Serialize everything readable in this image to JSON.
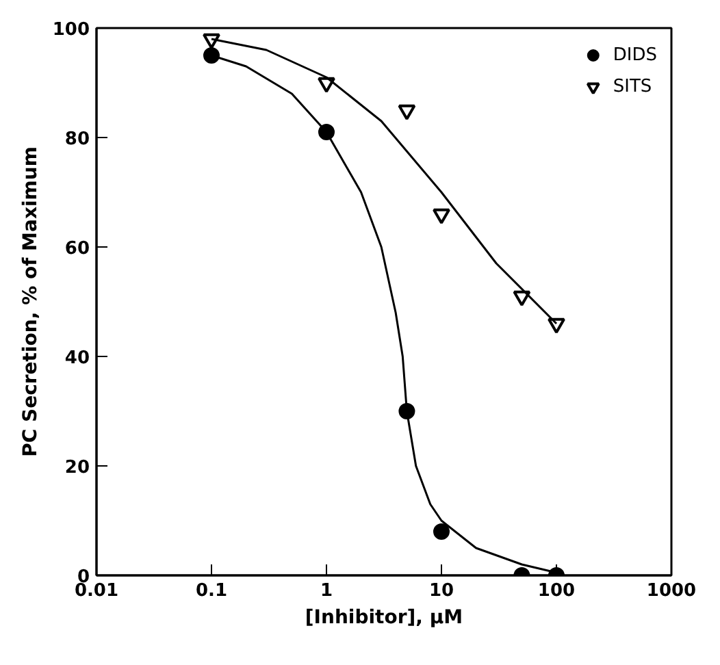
{
  "chart_data": {
    "type": "scatter",
    "xlabel": "[Inhibitor], μM",
    "ylabel": "PC Secretion, % of Maximum",
    "log": "x",
    "xlim": [
      0.01,
      1000
    ],
    "xticks": [
      0.01,
      0.1,
      1,
      10,
      100,
      1000
    ],
    "ylim": [
      0,
      100
    ],
    "yticks": [
      0,
      20,
      40,
      60,
      80,
      100
    ],
    "grid": false,
    "legend": "top right",
    "series": [
      {
        "name": "DIDS",
        "marker": "circle",
        "color": "#000000",
        "x": [
          0.1,
          1,
          5,
          10,
          50,
          100
        ],
        "values": [
          95,
          81,
          30,
          8,
          0,
          0
        ]
      },
      {
        "name": "SITS",
        "marker": "triangle",
        "color": "#000000",
        "x": [
          0.1,
          1,
          5,
          10,
          50,
          100
        ],
        "values": [
          98,
          90,
          85,
          66,
          51,
          46
        ]
      },
      {
        "type": "line",
        "color": "#000000",
        "x": [
          0.1,
          0.2,
          0.5,
          1,
          2,
          3,
          4,
          4.6,
          5,
          6,
          8,
          10,
          20,
          50,
          100
        ],
        "values": [
          95,
          93,
          88,
          81,
          70,
          60,
          48,
          40,
          30,
          20,
          13,
          10,
          5,
          2,
          0.5
        ]
      },
      {
        "type": "line",
        "color": "#000000",
        "x": [
          0.1,
          0.3,
          1,
          3,
          10,
          30,
          100
        ],
        "values": [
          98,
          96,
          91,
          83,
          70,
          57,
          46
        ]
      }
    ]
  }
}
